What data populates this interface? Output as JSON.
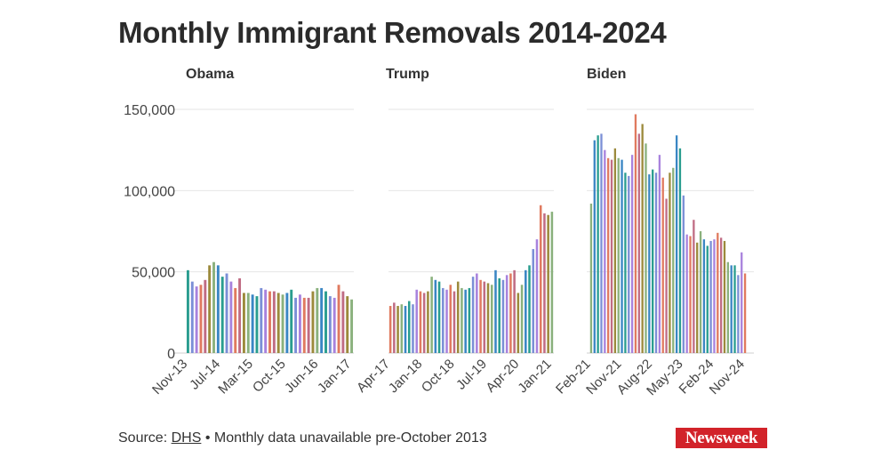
{
  "title": "Monthly Immigrant Removals 2014-2024",
  "footer": {
    "source_label": "Source:",
    "source_link": "DHS",
    "note": "• Monthly data unavailable pre-October 2013"
  },
  "logo": "Newsweek",
  "colors": [
    "#2a9d8f",
    "#e07a5f",
    "#8ab17d",
    "#7b8fd6",
    "#c06c84",
    "#3a86c4",
    "#a882dd",
    "#9c8a3c"
  ],
  "chart_data": {
    "type": "bar",
    "ylim": [
      0,
      150000
    ],
    "y_ticks": [
      0,
      50000,
      100000,
      150000
    ],
    "y_tick_labels": [
      "0",
      "50,000",
      "100,000",
      "150,000"
    ],
    "grid": true,
    "panels": [
      {
        "title": "Obama",
        "x_tick_labels": [
          "Nov-13",
          "Jul-14",
          "Mar-15",
          "Oct-15",
          "Jun-16",
          "Jan-17"
        ],
        "values": [
          51000,
          44000,
          41000,
          42000,
          45000,
          54000,
          56000,
          54000,
          47000,
          49000,
          44000,
          40000,
          46000,
          37000,
          37000,
          36000,
          35000,
          40000,
          39000,
          38000,
          38000,
          37000,
          36000,
          37000,
          39000,
          34000,
          36000,
          34000,
          34000,
          38000,
          40000,
          40000,
          38000,
          35000,
          34000,
          42000,
          38000,
          35000,
          33000
        ]
      },
      {
        "title": "Trump",
        "x_tick_labels": [
          "Apr-17",
          "Jan-18",
          "Oct-18",
          "Jul-19",
          "Apr-20",
          "Jan-21"
        ],
        "values": [
          29000,
          31000,
          29000,
          30000,
          29000,
          32000,
          30000,
          39000,
          38000,
          37000,
          38000,
          47000,
          45000,
          44000,
          40000,
          39000,
          42000,
          38000,
          44000,
          40000,
          39000,
          40000,
          47000,
          49000,
          45000,
          44000,
          43000,
          42000,
          51000,
          46000,
          45000,
          48000,
          49000,
          51000,
          37000,
          42000,
          51000,
          54000,
          64000,
          70000,
          91000,
          86000,
          85000,
          87000
        ]
      },
      {
        "title": "Biden",
        "x_tick_labels": [
          "Feb-21",
          "Nov-21",
          "Aug-22",
          "May-23",
          "Feb-24",
          "Nov-24"
        ],
        "values": [
          92000,
          131000,
          134000,
          135000,
          125000,
          120000,
          119000,
          126000,
          120000,
          119000,
          111000,
          109000,
          122000,
          147000,
          135000,
          141000,
          129000,
          110000,
          113000,
          111000,
          122000,
          108000,
          95000,
          111000,
          114000,
          134000,
          126000,
          97000,
          73000,
          72000,
          82000,
          68000,
          75000,
          70000,
          66000,
          69000,
          70000,
          74000,
          71000,
          69000,
          56000,
          54000,
          54000,
          48000,
          62000,
          49000
        ]
      }
    ]
  }
}
